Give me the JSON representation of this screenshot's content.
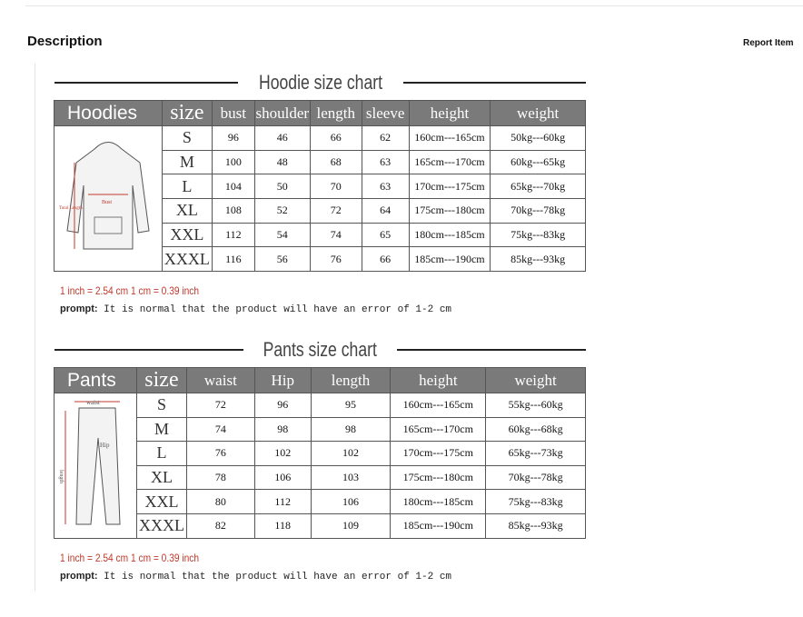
{
  "header": {
    "title": "Description",
    "report_label": "Report Item"
  },
  "hoodie": {
    "title": "Hoodie size chart",
    "label": "Hoodies",
    "columns": [
      "size",
      "bust",
      "shoulder",
      "length",
      "sleeve",
      "height",
      "weight"
    ],
    "rows": [
      [
        "S",
        "96",
        "46",
        "66",
        "62",
        "160cm---165cm",
        "50kg---60kg"
      ],
      [
        "M",
        "100",
        "48",
        "68",
        "63",
        "165cm---170cm",
        "60kg---65kg"
      ],
      [
        "L",
        "104",
        "50",
        "70",
        "63",
        "170cm---175cm",
        "65kg---70kg"
      ],
      [
        "XL",
        "108",
        "52",
        "72",
        "64",
        "175cm---180cm",
        "70kg---78kg"
      ],
      [
        "XXL",
        "112",
        "54",
        "74",
        "65",
        "180cm---185cm",
        "75kg---83kg"
      ],
      [
        "XXXL",
        "116",
        "56",
        "76",
        "66",
        "185cm---190cm",
        "85kg---93kg"
      ]
    ],
    "image_labels": {
      "bust": "Bust",
      "length": "Total Length"
    },
    "conversion": "1 inch = 2.54 cm     1 cm = 0.39 inch",
    "prompt_label": "prompt:",
    "prompt": "It is normal that the product will have an error of 1-2 cm"
  },
  "pants": {
    "title": "Pants size chart",
    "label": "Pants",
    "columns": [
      "size",
      "waist",
      "Hip",
      "length",
      "height",
      "weight"
    ],
    "rows": [
      [
        "S",
        "72",
        "96",
        "95",
        "160cm---165cm",
        "55kg---60kg"
      ],
      [
        "M",
        "74",
        "98",
        "98",
        "165cm---170cm",
        "60kg---68kg"
      ],
      [
        "L",
        "76",
        "102",
        "102",
        "170cm---175cm",
        "65kg---73kg"
      ],
      [
        "XL",
        "78",
        "106",
        "103",
        "175cm---180cm",
        "70kg---78kg"
      ],
      [
        "XXL",
        "80",
        "112",
        "106",
        "180cm---185cm",
        "75kg---83kg"
      ],
      [
        "XXXL",
        "82",
        "118",
        "109",
        "185cm---190cm",
        "85kg---93kg"
      ]
    ],
    "image_labels": {
      "waist": "waist",
      "hip": "Hip",
      "length": "length"
    },
    "conversion": "1 inch = 2.54 cm     1 cm = 0.39 inch",
    "prompt_label": "prompt:",
    "prompt": "It is normal that the product will have an error of 1-2 cm"
  }
}
